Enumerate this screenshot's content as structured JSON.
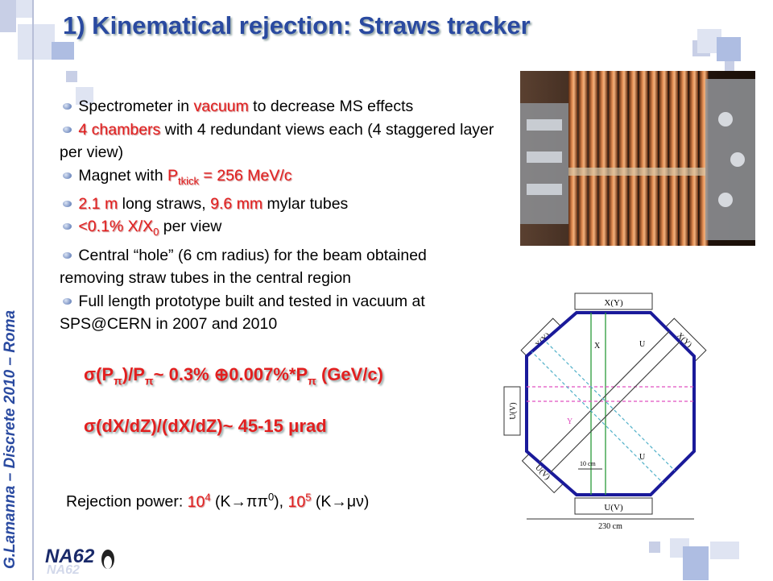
{
  "title": "1) Kinematical rejection: Straws tracker",
  "sidebar_text": "G.Lamanna – Discrete 2010 – Roma",
  "bullets": [
    {
      "pre": "Spectrometer in ",
      "hl": "vacuum",
      "post": " to decrease MS effects"
    },
    {
      "hl": "4 chambers",
      "post": " with 4 redundant views each (4 staggered layer per view)"
    },
    {
      "pre": "Magnet with ",
      "hl_p": "P",
      "hl_sub": "tkick",
      "hl_after": " = 256 MeV/c"
    },
    {
      "hl1": "2.1 m",
      "mid": " long straws, ",
      "hl2": "9.6 mm",
      "post": " mylar tubes"
    },
    {
      "hl": "<0.1% X/X",
      "hl_sub": "0",
      "post": " per view"
    },
    {
      "pre": "Central “hole” (6 cm radius) for the beam obtained removing straw tubes in the central region"
    },
    {
      "pre": "Full length prototype built and tested in vacuum at SPS@CERN in 2007 and 2010"
    }
  ],
  "formula1": {
    "a": "σ(P",
    "s1": "π",
    "b": ")/P",
    "s2": "π",
    "c": "~ 0.3% ⊕0.007%*P",
    "s3": "π",
    "d": " (GeV/c)"
  },
  "formula2": "σ(dX/dZ)/(dX/dZ)~ 45-15 μrad",
  "rejection": {
    "label": "Rejection power: ",
    "v1": "10",
    "e1": "4",
    "p1": " (K→ππ",
    "e_pi": "0",
    "p2": "), ",
    "v2": "10",
    "e2": "5",
    "p3": " (K→μν)"
  },
  "diagram": {
    "labels": {
      "top": "X(Y)",
      "bottom": "U(V)",
      "left": "U(V)",
      "tl": "X(Y)",
      "tr": "X(Y)",
      "bl": "U(V)",
      "x": "X",
      "y": "Y",
      "u": "U",
      "u2": "U",
      "w10": "10 cm",
      "w230": "230 cm"
    }
  },
  "logo": "NA62"
}
